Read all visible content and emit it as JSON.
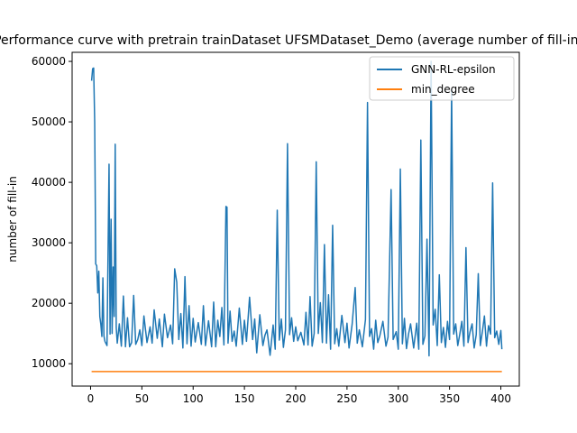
{
  "chart_data": {
    "type": "line",
    "title": "Performance curve with pretrain trainDataset UFSMDataset_Demo (average number of fill-in)",
    "xlabel": "",
    "ylabel": "number of fill-in",
    "xlim": [
      -18,
      418
    ],
    "ylim": [
      6300,
      61500
    ],
    "x_ticks": [
      0,
      50,
      100,
      150,
      200,
      250,
      300,
      350,
      400
    ],
    "y_ticks": [
      10000,
      20000,
      30000,
      40000,
      50000,
      60000
    ],
    "grid": false,
    "legend_position": "top-right",
    "series": [
      {
        "name": "GNN-RL-epsilon",
        "color": "#1f77b4",
        "points": [
          [
            1,
            56800
          ],
          [
            2,
            58800
          ],
          [
            3,
            58900
          ],
          [
            4,
            50000
          ],
          [
            5,
            26500
          ],
          [
            6,
            26200
          ],
          [
            7,
            21700
          ],
          [
            8,
            25300
          ],
          [
            9,
            17800
          ],
          [
            10,
            16500
          ],
          [
            11,
            14500
          ],
          [
            12,
            24200
          ],
          [
            13,
            14600
          ],
          [
            14,
            13700
          ],
          [
            16,
            13000
          ],
          [
            18,
            43000
          ],
          [
            19,
            14900
          ],
          [
            20,
            33900
          ],
          [
            21,
            15000
          ],
          [
            22,
            26000
          ],
          [
            23,
            17800
          ],
          [
            24,
            46300
          ],
          [
            25,
            16000
          ],
          [
            26,
            13400
          ],
          [
            28,
            16600
          ],
          [
            30,
            12900
          ],
          [
            32,
            21200
          ],
          [
            34,
            12800
          ],
          [
            36,
            17600
          ],
          [
            38,
            12800
          ],
          [
            40,
            13500
          ],
          [
            42,
            21300
          ],
          [
            44,
            13200
          ],
          [
            46,
            14000
          ],
          [
            48,
            15600
          ],
          [
            50,
            13000
          ],
          [
            52,
            17900
          ],
          [
            55,
            13500
          ],
          [
            58,
            16100
          ],
          [
            60,
            13400
          ],
          [
            62,
            18900
          ],
          [
            65,
            14200
          ],
          [
            67,
            17400
          ],
          [
            70,
            12800
          ],
          [
            72,
            18200
          ],
          [
            75,
            14300
          ],
          [
            78,
            16400
          ],
          [
            80,
            13300
          ],
          [
            82,
            25700
          ],
          [
            84,
            23500
          ],
          [
            86,
            14000
          ],
          [
            88,
            18300
          ],
          [
            90,
            12600
          ],
          [
            92,
            24400
          ],
          [
            94,
            13300
          ],
          [
            96,
            19600
          ],
          [
            98,
            12900
          ],
          [
            100,
            17500
          ],
          [
            102,
            13600
          ],
          [
            105,
            16800
          ],
          [
            108,
            13200
          ],
          [
            110,
            19600
          ],
          [
            112,
            13000
          ],
          [
            115,
            17100
          ],
          [
            118,
            12800
          ],
          [
            120,
            20200
          ],
          [
            122,
            12800
          ],
          [
            124,
            17200
          ],
          [
            126,
            14500
          ],
          [
            128,
            19300
          ],
          [
            130,
            13100
          ],
          [
            132,
            36000
          ],
          [
            133,
            35900
          ],
          [
            134,
            13400
          ],
          [
            136,
            18700
          ],
          [
            138,
            13700
          ],
          [
            140,
            15400
          ],
          [
            142,
            12900
          ],
          [
            145,
            19200
          ],
          [
            148,
            13200
          ],
          [
            150,
            17200
          ],
          [
            152,
            13700
          ],
          [
            155,
            21000
          ],
          [
            158,
            14000
          ],
          [
            160,
            17400
          ],
          [
            162,
            11800
          ],
          [
            165,
            18100
          ],
          [
            168,
            13000
          ],
          [
            170,
            14700
          ],
          [
            172,
            15600
          ],
          [
            175,
            11400
          ],
          [
            178,
            16400
          ],
          [
            180,
            12400
          ],
          [
            182,
            35400
          ],
          [
            184,
            13900
          ],
          [
            186,
            17400
          ],
          [
            188,
            12700
          ],
          [
            190,
            15600
          ],
          [
            192,
            46400
          ],
          [
            194,
            14800
          ],
          [
            196,
            17600
          ],
          [
            198,
            13700
          ],
          [
            200,
            16100
          ],
          [
            202,
            13800
          ],
          [
            205,
            15200
          ],
          [
            208,
            13100
          ],
          [
            210,
            18500
          ],
          [
            212,
            13100
          ],
          [
            214,
            21100
          ],
          [
            216,
            12900
          ],
          [
            218,
            15000
          ],
          [
            220,
            43400
          ],
          [
            222,
            15000
          ],
          [
            224,
            20100
          ],
          [
            226,
            13500
          ],
          [
            228,
            29700
          ],
          [
            230,
            13400
          ],
          [
            232,
            21400
          ],
          [
            234,
            12400
          ],
          [
            236,
            32900
          ],
          [
            238,
            13300
          ],
          [
            240,
            15800
          ],
          [
            242,
            12900
          ],
          [
            245,
            18000
          ],
          [
            248,
            13500
          ],
          [
            250,
            16700
          ],
          [
            252,
            12600
          ],
          [
            255,
            16500
          ],
          [
            258,
            22600
          ],
          [
            260,
            13400
          ],
          [
            262,
            15600
          ],
          [
            265,
            12800
          ],
          [
            268,
            17300
          ],
          [
            270,
            53200
          ],
          [
            272,
            14500
          ],
          [
            274,
            15800
          ],
          [
            276,
            12400
          ],
          [
            278,
            17200
          ],
          [
            280,
            13500
          ],
          [
            282,
            14600
          ],
          [
            285,
            17000
          ],
          [
            288,
            12900
          ],
          [
            290,
            14400
          ],
          [
            293,
            38800
          ],
          [
            295,
            14000
          ],
          [
            298,
            15300
          ],
          [
            300,
            12400
          ],
          [
            302,
            42200
          ],
          [
            304,
            13300
          ],
          [
            306,
            17500
          ],
          [
            308,
            12500
          ],
          [
            310,
            14900
          ],
          [
            312,
            16600
          ],
          [
            315,
            12600
          ],
          [
            318,
            16700
          ],
          [
            320,
            12400
          ],
          [
            322,
            47000
          ],
          [
            324,
            13200
          ],
          [
            326,
            14600
          ],
          [
            328,
            30600
          ],
          [
            330,
            11300
          ],
          [
            332,
            60000
          ],
          [
            334,
            16400
          ],
          [
            336,
            19000
          ],
          [
            338,
            13000
          ],
          [
            340,
            24700
          ],
          [
            342,
            13500
          ],
          [
            344,
            16000
          ],
          [
            346,
            12700
          ],
          [
            348,
            17000
          ],
          [
            350,
            14000
          ],
          [
            352,
            55400
          ],
          [
            354,
            14900
          ],
          [
            356,
            16600
          ],
          [
            358,
            13000
          ],
          [
            360,
            14900
          ],
          [
            362,
            17000
          ],
          [
            364,
            12900
          ],
          [
            366,
            29200
          ],
          [
            368,
            13500
          ],
          [
            370,
            15300
          ],
          [
            372,
            16600
          ],
          [
            374,
            12600
          ],
          [
            376,
            14800
          ],
          [
            378,
            24900
          ],
          [
            380,
            13000
          ],
          [
            382,
            15300
          ],
          [
            384,
            17900
          ],
          [
            386,
            12900
          ],
          [
            388,
            16300
          ],
          [
            390,
            14900
          ],
          [
            392,
            39900
          ],
          [
            394,
            14300
          ],
          [
            396,
            15400
          ],
          [
            398,
            13200
          ],
          [
            400,
            15500
          ],
          [
            401,
            12400
          ]
        ]
      },
      {
        "name": "min_degree",
        "color": "#ff7f0e",
        "points": [
          [
            1,
            8700
          ],
          [
            401,
            8700
          ]
        ]
      }
    ]
  }
}
